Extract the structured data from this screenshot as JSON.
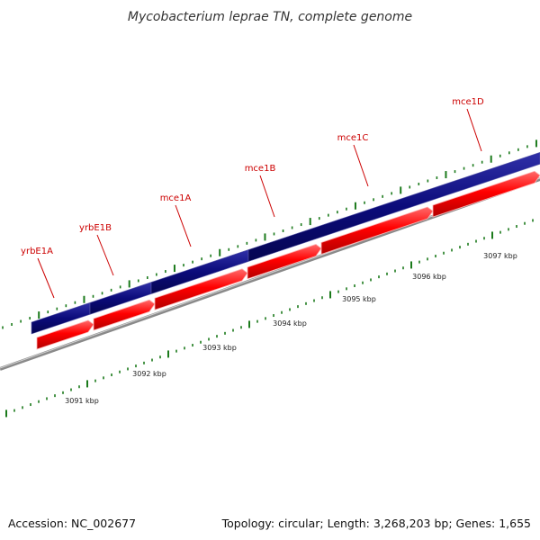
{
  "title": "Mycobacterium leprae TN, complete genome",
  "genes": [
    {
      "label": "yrbE1A"
    },
    {
      "label": "yrbE1B"
    },
    {
      "label": "mce1A"
    },
    {
      "label": "mce1B"
    },
    {
      "label": "mce1C"
    },
    {
      "label": "mce1D"
    }
  ],
  "ruler": {
    "labels": [
      "3091 kbp",
      "3092 kbp",
      "3093 kbp",
      "3094 kbp",
      "3095 kbp",
      "3096 kbp",
      "3097 kbp"
    ]
  },
  "colors": {
    "forward_track": "#0b0b7a",
    "gene_arrow": "#ff0000",
    "gene_label": "#cc0000",
    "backbone": "#8a8a8a",
    "ticks": "#1b7a1b"
  },
  "footer": {
    "accession": "Accession: NC_002677",
    "summary": "Topology: circular; Length: 3,268,203 bp; Genes: 1,655"
  }
}
